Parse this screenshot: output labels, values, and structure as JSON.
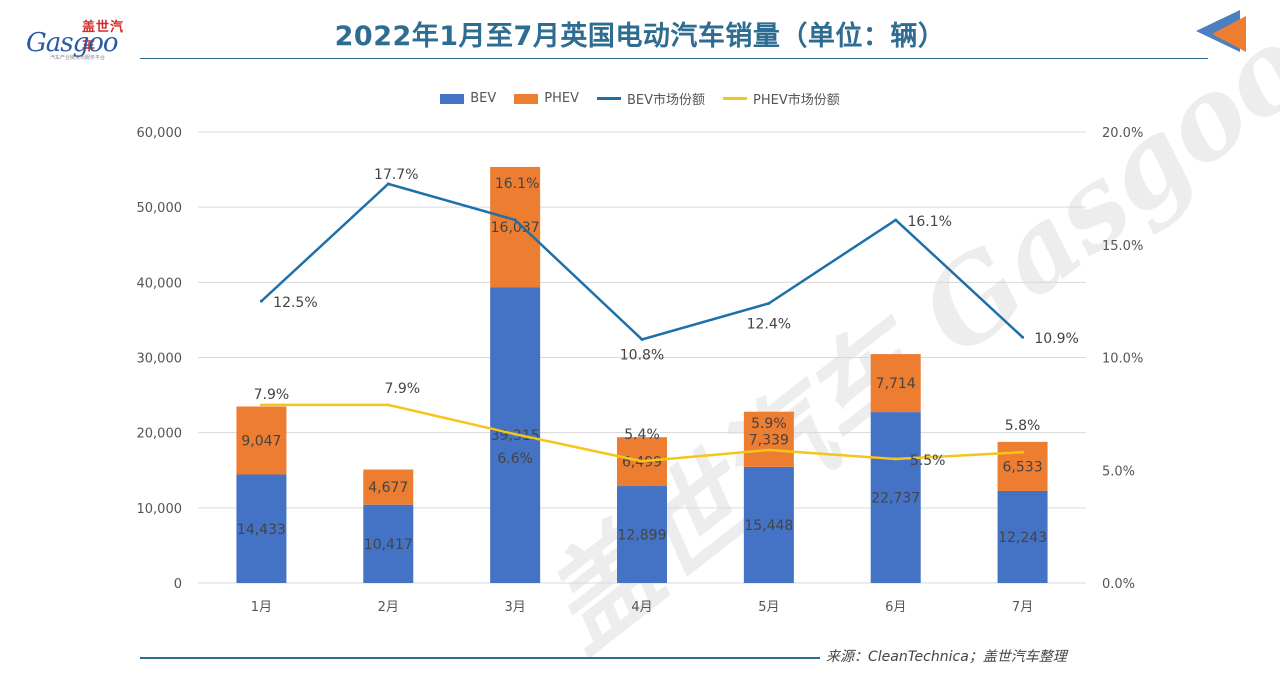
{
  "brand": {
    "logo_cn": "盖世汽车",
    "logo_en": "Gasgoo",
    "logo_sub": "汽车产业链资讯服务平台",
    "watermark": "盖世汽车 Gasgoo"
  },
  "title": "2022年1月至7月英国电动汽车销量（单位：辆）",
  "source": "来源：CleanTechnica；盖世汽车整理",
  "colors": {
    "bev": "#4472c4",
    "phev": "#ed7d31",
    "bev_share": "#1f6fa8",
    "phev_share": "#f5c518",
    "title": "#2f6c92",
    "grid": "#d9d9d9"
  },
  "legend": [
    {
      "name": "BEV",
      "kind": "box",
      "color": "#4472c4"
    },
    {
      "name": "PHEV",
      "kind": "box",
      "color": "#ed7d31"
    },
    {
      "name": "BEV市场份额",
      "kind": "line",
      "color": "#1f6fa8"
    },
    {
      "name": "PHEV市场份额",
      "kind": "line",
      "color": "#f5c518"
    }
  ],
  "chart_data": {
    "type": "bar",
    "stacked": true,
    "categories": [
      "1月",
      "2月",
      "3月",
      "4月",
      "5月",
      "6月",
      "7月"
    ],
    "series": [
      {
        "name": "BEV",
        "type": "bar",
        "axis": "left",
        "values": [
          14433,
          10417,
          39315,
          12899,
          15448,
          22737,
          12243
        ],
        "labels": [
          "14,433",
          "10,417",
          "39,315",
          "12,899",
          "15,448",
          "22,737",
          "12,243"
        ]
      },
      {
        "name": "PHEV",
        "type": "bar",
        "axis": "left",
        "values": [
          9047,
          4677,
          16037,
          6499,
          7339,
          7714,
          6533
        ],
        "labels": [
          "9,047",
          "4,677",
          "16,037",
          "6,499",
          "7,339",
          "7,714",
          "6,533"
        ]
      },
      {
        "name": "BEV市场份额",
        "type": "line",
        "axis": "right",
        "values": [
          12.5,
          17.7,
          16.1,
          10.8,
          12.4,
          16.1,
          10.9
        ],
        "labels": [
          "12.5%",
          "17.7%",
          "16.1%",
          "10.8%",
          "12.4%",
          "16.1%",
          "10.9%"
        ]
      },
      {
        "name": "PHEV市场份额",
        "type": "line",
        "axis": "right",
        "values": [
          7.9,
          7.9,
          6.6,
          5.4,
          5.9,
          5.5,
          5.8
        ],
        "labels": [
          "7.9%",
          "7.9%",
          "6.6%",
          "5.4%",
          "5.9%",
          "5.5%",
          "5.8%"
        ]
      }
    ],
    "y_left": {
      "min": 0,
      "max": 60000,
      "ticks": [
        "0",
        "10,000",
        "20,000",
        "30,000",
        "40,000",
        "50,000",
        "60,000"
      ]
    },
    "y_right": {
      "min": 0,
      "max": 20,
      "ticks": [
        "0.0%",
        "5.0%",
        "10.0%",
        "15.0%",
        "20.0%"
      ]
    },
    "legend_position": "top",
    "grid": true
  }
}
